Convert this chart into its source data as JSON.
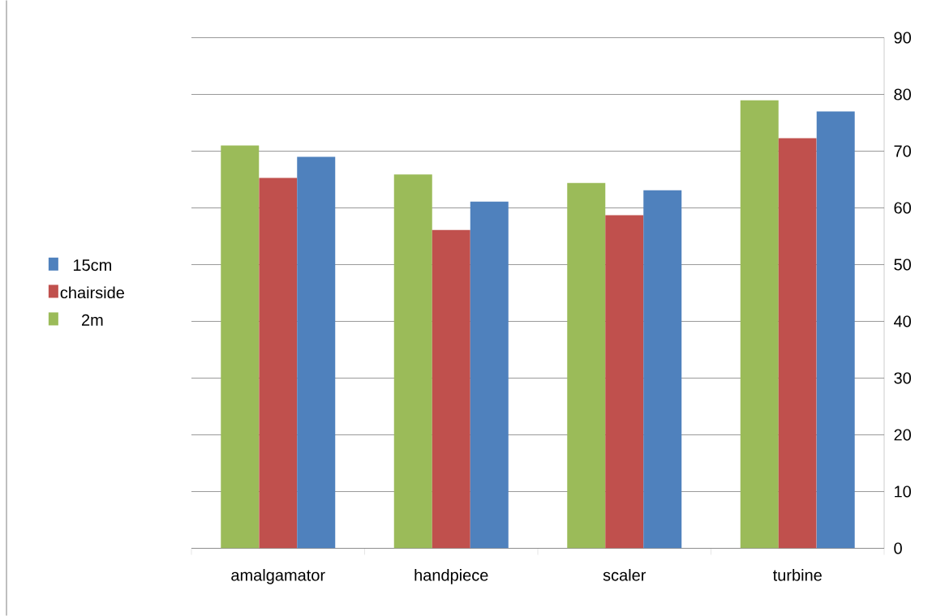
{
  "chart_data": {
    "type": "bar",
    "categories": [
      "amalgamator",
      "handpiece",
      "scaler",
      "turbine"
    ],
    "series": [
      {
        "name": "2m",
        "color": "#9bbb59",
        "values": [
          71.0,
          65.9,
          64.4,
          79.0
        ]
      },
      {
        "name": "chairside",
        "color": "#c0504d",
        "values": [
          65.3,
          56.1,
          58.7,
          72.3
        ]
      },
      {
        "name": "15cm",
        "color": "#4f81bd",
        "values": [
          69.0,
          61.1,
          63.1,
          77.0
        ]
      }
    ],
    "ylim": [
      0,
      90
    ],
    "yticks": [
      0,
      10,
      20,
      30,
      40,
      50,
      60,
      70,
      80,
      90
    ],
    "grid": "y",
    "legend": "left"
  }
}
